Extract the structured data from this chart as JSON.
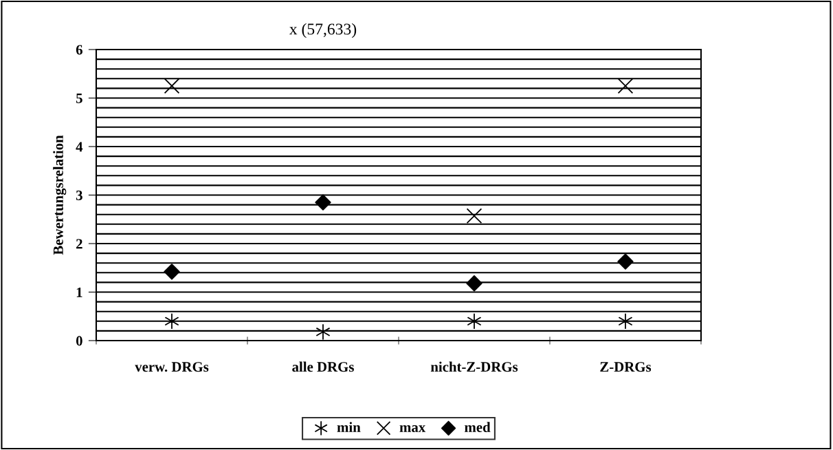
{
  "chart_data": {
    "type": "scatter",
    "ylabel": "Bewertungsrelation",
    "categories": [
      "verw. DRGs",
      "alle DRGs",
      "nicht-Z-DRGs",
      "Z-DRGs"
    ],
    "series": [
      {
        "name": "min",
        "color": "#000000",
        "values": [
          0.4,
          0.18,
          0.4,
          0.4
        ]
      },
      {
        "name": "max",
        "color": "#000000",
        "marker": "cross",
        "values": [
          5.25,
          null,
          2.57,
          5.25
        ]
      },
      {
        "name": "med",
        "color": "#000000",
        "marker": "diamond",
        "values": [
          1.42,
          2.85,
          1.18,
          1.63
        ]
      }
    ],
    "annotations": [
      "x (57,633)"
    ],
    "ylim": [
      0,
      6
    ],
    "yticks": [
      0,
      {
        "value": 0.2,
        "label": null
      },
      {
        "value": 0.4,
        "label": null
      },
      {
        "value": 0.6,
        "label": null
      },
      {
        "value": 0.8,
        "label": null
      },
      1,
      {
        "value": 1.2,
        "label": null
      },
      {
        "value": 1.4,
        "label": null
      },
      {
        "value": 1.6,
        "label": null
      },
      {
        "value": 1.8,
        "label": null
      },
      2,
      {
        "value": 2.2,
        "label": null
      },
      {
        "value": 2.4,
        "label": null
      },
      {
        "value": 2.6,
        "label": null
      },
      {
        "value": 2.8,
        "label": null
      },
      3,
      {
        "value": 3.2,
        "label": null
      },
      {
        "value": 3.4,
        "label": null
      },
      {
        "value": 3.6,
        "label": null
      },
      {
        "value": 3.8,
        "label": null
      },
      4,
      {
        "value": 4.2,
        "label": null
      },
      {
        "value": 4.4,
        "label": null
      },
      {
        "value": 4.6,
        "label": null
      },
      {
        "value": 4.8,
        "label": null
      },
      5,
      {
        "value": 5.2,
        "label": null
      },
      {
        "value": 5.4,
        "label": null
      },
      {
        "value": 5.6,
        "label": null
      },
      {
        "value": 5.8,
        "label": null
      },
      6
    ],
    "grid": "y",
    "legend": "bottom"
  }
}
